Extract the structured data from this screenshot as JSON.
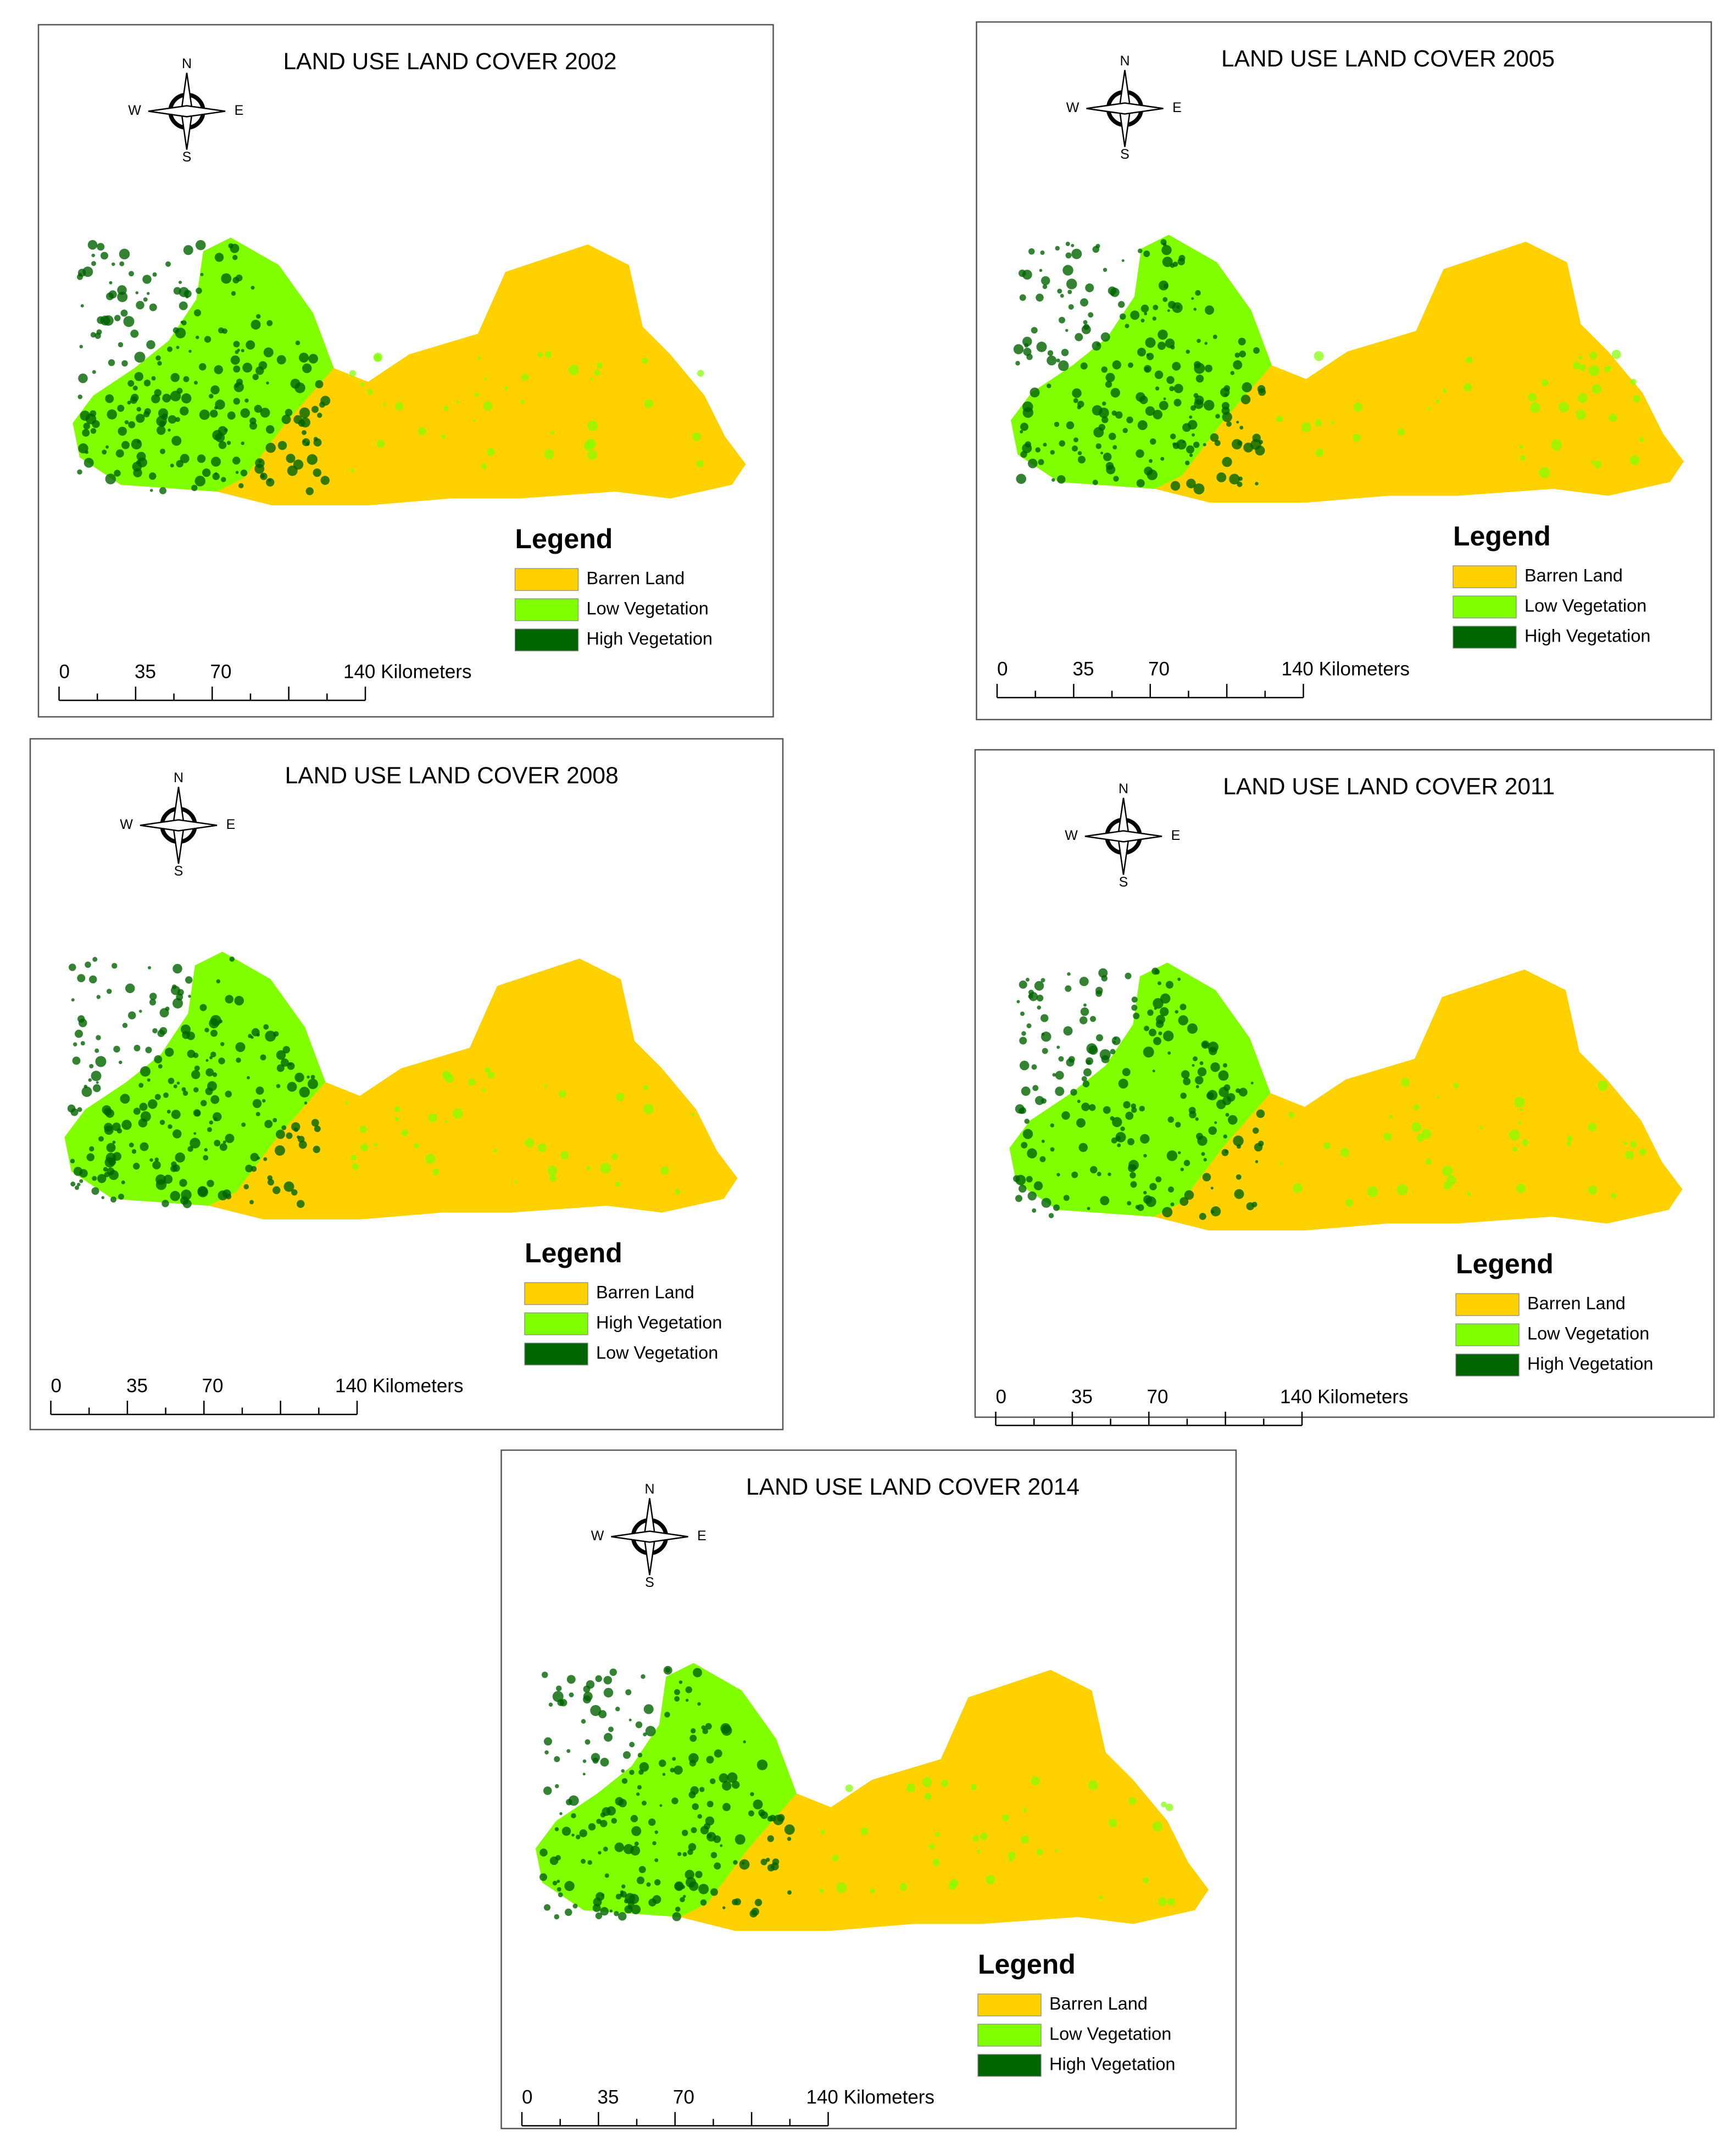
{
  "maps": [
    {
      "title": "LAND USE LAND COVER 2002",
      "compass": {
        "n": "N",
        "e": "E",
        "s": "S",
        "w": "W"
      },
      "legend": {
        "title": "Legend",
        "items": [
          {
            "label": "Barren Land",
            "color": "#ffd100"
          },
          {
            "label": "Low Vegetation",
            "color": "#80ff00"
          },
          {
            "label": "High Vegetation",
            "color": "#006400"
          }
        ]
      },
      "scale": [
        "0",
        "35",
        "70",
        "140 Kilometers"
      ]
    },
    {
      "title": "LAND USE LAND COVER 2005",
      "compass": {
        "n": "N",
        "e": "E",
        "s": "S",
        "w": "W"
      },
      "legend": {
        "title": "Legend",
        "items": [
          {
            "label": "Barren Land",
            "color": "#ffd100"
          },
          {
            "label": "Low Vegetation",
            "color": "#80ff00"
          },
          {
            "label": "High Vegetation",
            "color": "#006400"
          }
        ]
      },
      "scale": [
        "0",
        "35",
        "70",
        "140 Kilometers"
      ]
    },
    {
      "title": "LAND USE LAND COVER 2008",
      "compass": {
        "n": "N",
        "e": "E",
        "s": "S",
        "w": "W"
      },
      "legend": {
        "title": "Legend",
        "items": [
          {
            "label": "Barren Land",
            "color": "#ffd100"
          },
          {
            "label": "High Vegetation",
            "color": "#80ff00"
          },
          {
            "label": "Low Vegetation",
            "color": "#006400"
          }
        ]
      },
      "scale": [
        "0",
        "35",
        "70",
        "140 Kilometers"
      ]
    },
    {
      "title": "LAND USE LAND COVER 2011",
      "compass": {
        "n": "N",
        "e": "E",
        "s": "S",
        "w": "W"
      },
      "legend": {
        "title": "Legend",
        "items": [
          {
            "label": "Barren Land",
            "color": "#ffd100"
          },
          {
            "label": "Low Vegetation",
            "color": "#80ff00"
          },
          {
            "label": "High Vegetation",
            "color": "#006400"
          }
        ]
      },
      "scale": [
        "0",
        "35",
        "70",
        "140 Kilometers"
      ]
    },
    {
      "title": "LAND USE LAND COVER 2014",
      "compass": {
        "n": "N",
        "e": "E",
        "s": "S",
        "w": "W"
      },
      "legend": {
        "title": "Legend",
        "items": [
          {
            "label": "Barren Land",
            "color": "#ffd100"
          },
          {
            "label": "Low Vegetation",
            "color": "#80ff00"
          },
          {
            "label": "High Vegetation",
            "color": "#006400"
          }
        ]
      },
      "scale": [
        "0",
        "35",
        "70",
        "140 Kilometers"
      ]
    }
  ]
}
